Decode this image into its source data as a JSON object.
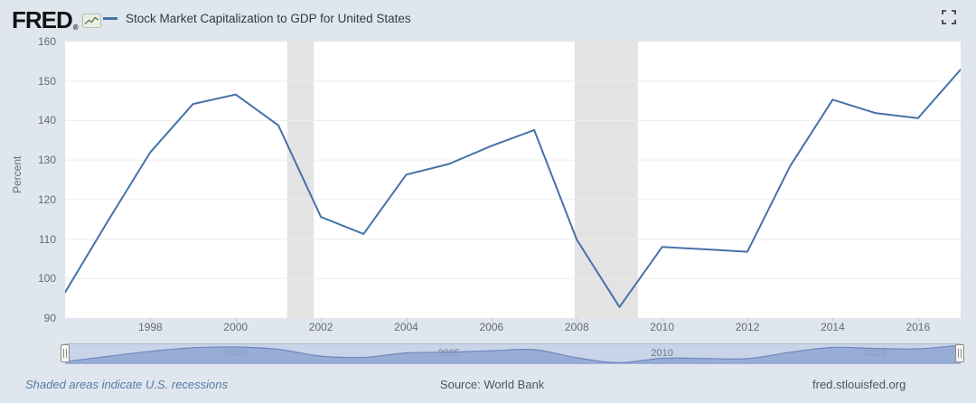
{
  "header": {
    "logo_text": "FRED",
    "logo_mark": "®",
    "series_title": "Stock Market Capitalization to GDP for United States"
  },
  "icons": {
    "logo_sparkline": "sparkline-icon",
    "fullscreen": "fullscreen-expand-icon",
    "nav_handles": "drag-grip-icon"
  },
  "chart_data": {
    "type": "line",
    "title": "Stock Market Capitalization to GDP for United States",
    "xlabel": "",
    "ylabel": "Percent",
    "x": [
      1996,
      1997,
      1998,
      1999,
      2000,
      2001,
      2002,
      2003,
      2004,
      2005,
      2006,
      2007,
      2008,
      2009,
      2010,
      2011,
      2012,
      2013,
      2014,
      2015,
      2016,
      2017
    ],
    "values": [
      96.5,
      114.5,
      132.0,
      144.2,
      146.6,
      138.8,
      115.6,
      111.3,
      126.3,
      129.0,
      133.6,
      137.6,
      109.8,
      92.8,
      108.0,
      107.4,
      106.8,
      128.4,
      145.3,
      141.9,
      140.6,
      152.9
    ],
    "x_range": [
      1996,
      2017
    ],
    "ylim": [
      90,
      160
    ],
    "yticks": [
      90,
      100,
      110,
      120,
      130,
      140,
      150,
      160
    ],
    "xticks": [
      1998,
      2000,
      2002,
      2004,
      2006,
      2008,
      2010,
      2012,
      2014,
      2016
    ],
    "grid": "horizontal",
    "legend_position": "top",
    "line_color": "#4572a7",
    "grid_color": "#ececec",
    "plot_background": "#ffffff",
    "page_background": "#dfe6ed",
    "recession_color": "#e3e3e3",
    "recession_bands": [
      {
        "start": 2001.21,
        "end": 2001.83
      },
      {
        "start": 2007.95,
        "end": 2009.43
      }
    ]
  },
  "navigator": {
    "label_years": [
      2000,
      2005,
      2010,
      2015
    ],
    "labels": [
      "2000",
      "2005",
      "2010",
      "2015"
    ],
    "fill_color": "#8da5d2",
    "stroke_color": "#6f87bd",
    "value_range": [
      88,
      156
    ]
  },
  "footer": {
    "note": "Shaded areas indicate U.S. recessions",
    "source": "Source: World Bank",
    "site": "fred.stlouisfed.org"
  }
}
